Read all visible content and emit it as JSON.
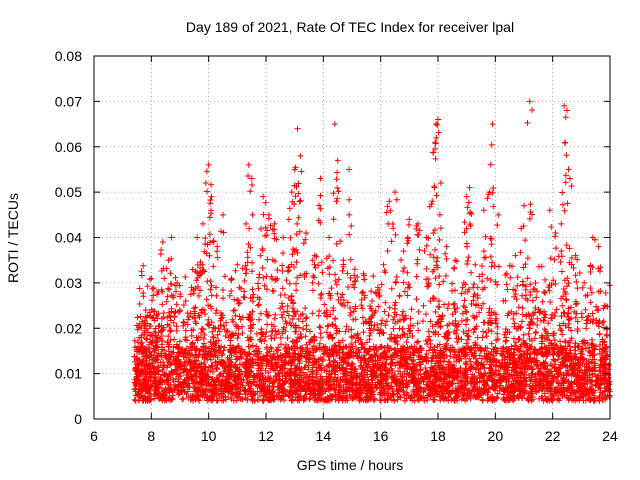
{
  "chart_data": {
    "type": "scatter",
    "title": "Day 189 of 2021, Rate Of TEC Index for receiver lpal",
    "xlabel": "GPS time / hours",
    "ylabel": "ROTI / TECUs",
    "xlim": [
      6,
      24
    ],
    "ylim": [
      0,
      0.08
    ],
    "x_ticks": [
      6,
      8,
      10,
      12,
      14,
      16,
      18,
      20,
      22,
      24
    ],
    "x_tick_labels": [
      "6",
      "8",
      "10",
      "12",
      "14",
      "16",
      "18",
      "20",
      "22",
      "24"
    ],
    "y_ticks": [
      0,
      0.01,
      0.02,
      0.03,
      0.04,
      0.05,
      0.06,
      0.07,
      0.08
    ],
    "y_tick_labels": [
      "0",
      "0.01",
      "0.02",
      "0.03",
      "0.04",
      "0.05",
      "0.06",
      "0.07",
      "0.08"
    ],
    "grid": true,
    "marker": "plus",
    "color": "#ff0000",
    "series": [
      {
        "name": "ROTI",
        "x_start": 7.4,
        "x_end": 24.0,
        "points": [
          [
            7.5,
            0.013
          ],
          [
            7.6,
            0.021
          ],
          [
            7.8,
            0.024
          ],
          [
            8.0,
            0.031
          ],
          [
            8.2,
            0.028
          ],
          [
            8.4,
            0.039
          ],
          [
            8.6,
            0.035
          ],
          [
            8.7,
            0.04
          ],
          [
            8.9,
            0.03
          ],
          [
            9.2,
            0.026
          ],
          [
            9.4,
            0.029
          ],
          [
            9.6,
            0.04
          ],
          [
            9.8,
            0.043
          ],
          [
            9.9,
            0.052
          ],
          [
            10.0,
            0.056
          ],
          [
            10.1,
            0.049
          ],
          [
            10.3,
            0.038
          ],
          [
            10.5,
            0.045
          ],
          [
            10.8,
            0.031
          ],
          [
            11.0,
            0.034
          ],
          [
            11.3,
            0.043
          ],
          [
            11.4,
            0.056
          ],
          [
            11.5,
            0.053
          ],
          [
            11.8,
            0.036
          ],
          [
            11.9,
            0.049
          ],
          [
            12.1,
            0.045
          ],
          [
            12.3,
            0.043
          ],
          [
            12.6,
            0.04
          ],
          [
            12.8,
            0.044
          ],
          [
            12.9,
            0.05
          ],
          [
            13.0,
            0.055
          ],
          [
            13.1,
            0.064
          ],
          [
            13.2,
            0.058
          ],
          [
            13.4,
            0.041
          ],
          [
            13.7,
            0.036
          ],
          [
            13.9,
            0.053
          ],
          [
            14.2,
            0.04
          ],
          [
            14.4,
            0.065
          ],
          [
            14.5,
            0.057
          ],
          [
            14.7,
            0.035
          ],
          [
            14.9,
            0.055
          ],
          [
            15.1,
            0.033
          ],
          [
            15.4,
            0.032
          ],
          [
            15.7,
            0.026
          ],
          [
            15.9,
            0.029
          ],
          [
            16.1,
            0.034
          ],
          [
            16.3,
            0.048
          ],
          [
            16.5,
            0.05
          ],
          [
            16.8,
            0.037
          ],
          [
            17.0,
            0.044
          ],
          [
            17.3,
            0.043
          ],
          [
            17.6,
            0.04
          ],
          [
            17.8,
            0.048
          ],
          [
            17.9,
            0.061
          ],
          [
            18.0,
            0.066
          ],
          [
            18.1,
            0.052
          ],
          [
            18.3,
            0.038
          ],
          [
            18.6,
            0.035
          ],
          [
            18.9,
            0.03
          ],
          [
            19.0,
            0.049
          ],
          [
            19.1,
            0.051
          ],
          [
            19.3,
            0.034
          ],
          [
            19.6,
            0.046
          ],
          [
            19.8,
            0.05
          ],
          [
            19.9,
            0.065
          ],
          [
            20.1,
            0.045
          ],
          [
            20.4,
            0.032
          ],
          [
            20.7,
            0.036
          ],
          [
            20.9,
            0.042
          ],
          [
            21.0,
            0.047
          ],
          [
            21.2,
            0.07
          ],
          [
            21.4,
            0.03
          ],
          [
            21.7,
            0.028
          ],
          [
            21.9,
            0.046
          ],
          [
            22.1,
            0.041
          ],
          [
            22.3,
            0.043
          ],
          [
            22.4,
            0.069
          ],
          [
            22.5,
            0.068
          ],
          [
            22.6,
            0.053
          ],
          [
            22.8,
            0.036
          ],
          [
            23.1,
            0.03
          ],
          [
            23.4,
            0.04
          ],
          [
            23.6,
            0.038
          ],
          [
            23.8,
            0.025
          ]
        ]
      }
    ]
  }
}
